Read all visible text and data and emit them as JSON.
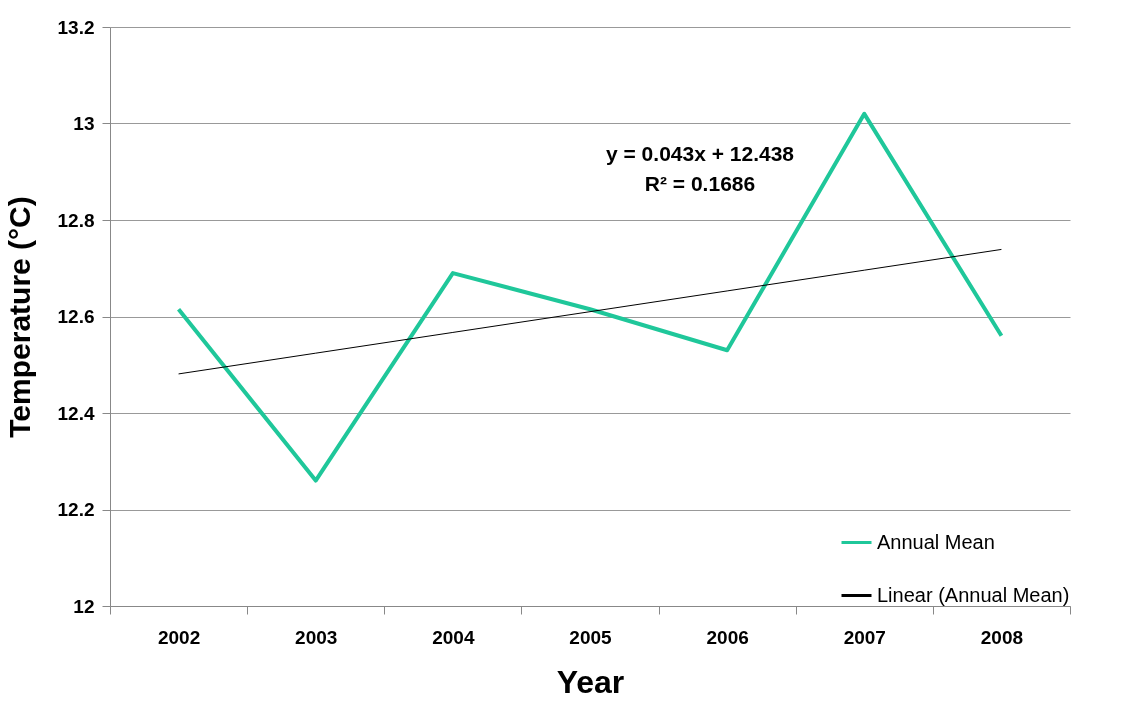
{
  "chart_data": {
    "type": "line",
    "xlabel": "Year",
    "ylabel": "Temperature (°C)",
    "categories": [
      "2002",
      "2003",
      "2004",
      "2005",
      "2006",
      "2007",
      "2008"
    ],
    "series": [
      {
        "name": "Annual Mean",
        "color": "#1fc79a",
        "values": [
          12.615,
          12.26,
          12.69,
          12.615,
          12.53,
          13.02,
          12.56
        ]
      },
      {
        "name": "Linear (Annual Mean)",
        "color": "#000000",
        "values": [
          12.481,
          12.524,
          12.567,
          12.61,
          12.653,
          12.696,
          12.739
        ]
      }
    ],
    "ylim": [
      12,
      13.2
    ],
    "yticks": [
      12,
      12.2,
      12.4,
      12.6,
      12.8,
      13,
      13.2
    ],
    "grid": "y",
    "legend": "bottom right",
    "marker": "none",
    "line_style": "solid",
    "annotations": [
      "y = 0.043x + 12.438",
      "R² = 0.1686"
    ]
  }
}
